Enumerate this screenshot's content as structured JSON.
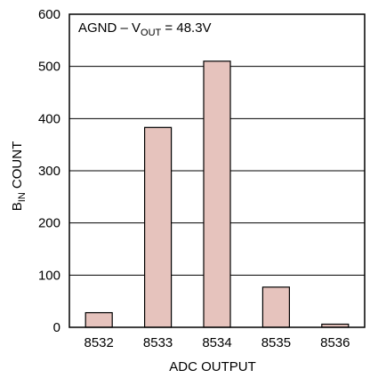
{
  "chart_data": {
    "type": "bar",
    "title": "",
    "annotation": {
      "text_a": "AGND – V",
      "subscript": "OUT",
      "text_b": " = 48.3V"
    },
    "xlabel": "ADC OUTPUT",
    "ylabel": {
      "main": "B",
      "subscript": "IN",
      "rest": " COUNT"
    },
    "categories": [
      "8532",
      "8533",
      "8534",
      "8535",
      "8536"
    ],
    "values": [
      28,
      383,
      510,
      77,
      6
    ],
    "ylim": [
      0,
      600
    ],
    "yticks": [
      0,
      100,
      200,
      300,
      400,
      500,
      600
    ],
    "ytick_labels": [
      "0",
      "100",
      "200",
      "300",
      "400",
      "500",
      "600"
    ],
    "grid": true,
    "colors": {
      "bar_fill": "#e6c3bd",
      "bar_stroke": "#000000",
      "grid": "#000000"
    }
  }
}
